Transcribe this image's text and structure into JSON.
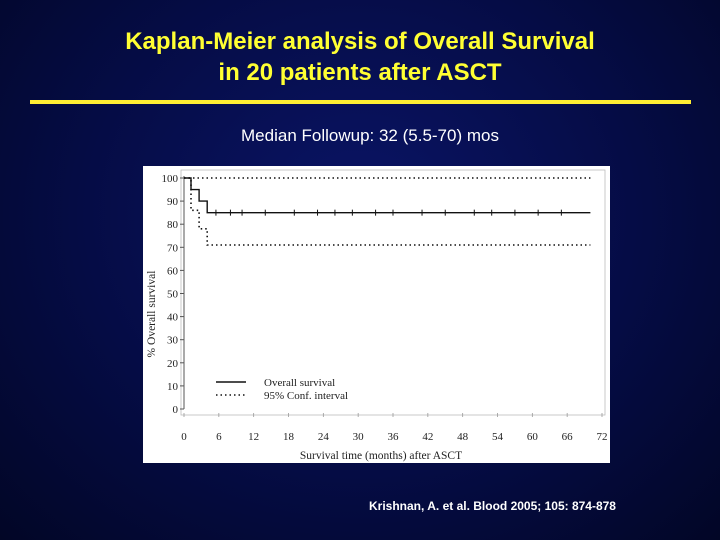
{
  "slide": {
    "title_line1": "Kaplan-Meier analysis of Overall Survival",
    "title_line2": "in 20 patients after ASCT",
    "subtitle": "Median Followup: 32 (5.5-70) mos",
    "citation": "Krishnan, A. et al. Blood 2005; 105: 874-878",
    "colors": {
      "title": "#ffff33",
      "rule": "#ffee33",
      "background": "#050c45"
    }
  },
  "chart_data": {
    "type": "line",
    "xlabel": "Survival time (months) after ASCT",
    "ylabel": "% Overall survival",
    "xlim": [
      0,
      72
    ],
    "ylim": [
      0,
      100
    ],
    "x_ticks": [
      0,
      6,
      12,
      18,
      24,
      30,
      36,
      42,
      48,
      54,
      60,
      66,
      72
    ],
    "y_ticks": [
      0,
      10,
      20,
      30,
      40,
      50,
      60,
      70,
      80,
      90,
      100
    ],
    "grid": false,
    "legend_position": "bottom-left",
    "series": [
      {
        "name": "Overall survival",
        "style": "solid",
        "step": true,
        "points": [
          [
            0,
            100
          ],
          [
            1.2,
            100
          ],
          [
            1.2,
            95
          ],
          [
            2.6,
            95
          ],
          [
            2.6,
            90
          ],
          [
            4,
            90
          ],
          [
            4,
            85
          ],
          [
            70,
            85
          ]
        ],
        "censor_marks": [
          5.5,
          8,
          10,
          14,
          19,
          23,
          26,
          29,
          33,
          36,
          41,
          45,
          50,
          53,
          57,
          61,
          65
        ]
      },
      {
        "name": "95% Conf. interval",
        "style": "dotted",
        "step": true,
        "points": [
          [
            0,
            100
          ],
          [
            70,
            100
          ]
        ]
      },
      {
        "name": "95% Conf. interval",
        "style": "dotted",
        "step": true,
        "points": [
          [
            0,
            100
          ],
          [
            1.2,
            100
          ],
          [
            1.2,
            86
          ],
          [
            2.6,
            86
          ],
          [
            2.6,
            78
          ],
          [
            4,
            78
          ],
          [
            4,
            71
          ],
          [
            70,
            71
          ]
        ]
      }
    ]
  }
}
